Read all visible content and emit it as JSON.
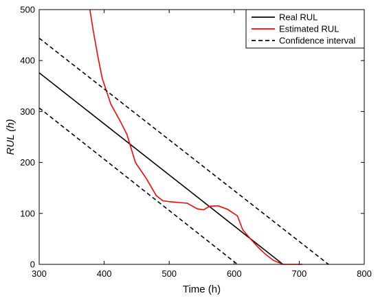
{
  "chart_data": {
    "type": "line",
    "xlabel": "Time (h)",
    "ylabel": "RUL (h)",
    "xlim": [
      300,
      800
    ],
    "ylim": [
      0,
      500
    ],
    "xticks": [
      300,
      400,
      500,
      600,
      700,
      800
    ],
    "yticks": [
      0,
      100,
      200,
      300,
      400,
      500
    ],
    "grid": false,
    "legend_position": "top-right",
    "series": [
      {
        "name": "Real RUL",
        "color": "#000000",
        "style": "solid",
        "x": [
          300,
          675
        ],
        "y": [
          376,
          0
        ]
      },
      {
        "name": "Estimated RUL",
        "color": "#ff0000",
        "style": "solid",
        "x": [
          378,
          383,
          390,
          397,
          410,
          425,
          435,
          448,
          465,
          480,
          490,
          500,
          510,
          528,
          543,
          553,
          562,
          575,
          590,
          605,
          613,
          625,
          638,
          648,
          660,
          675,
          690,
          705
        ],
        "y": [
          500,
          460,
          410,
          365,
          315,
          280,
          255,
          200,
          168,
          135,
          125,
          123,
          122,
          120,
          109,
          107,
          114,
          115,
          108,
          95,
          68,
          50,
          32,
          20,
          8,
          0,
          0,
          0
        ]
      },
      {
        "name": "Confidence interval",
        "color": "#000000",
        "style": "dashed",
        "x": [
          300,
          745
        ],
        "y": [
          444,
          0
        ]
      },
      {
        "name": "Confidence interval",
        "color": "#000000",
        "style": "dashed",
        "x": [
          300,
          605
        ],
        "y": [
          307,
          0
        ]
      }
    ],
    "legend": [
      {
        "label": "Real RUL",
        "color": "#000000",
        "style": "solid"
      },
      {
        "label": "Estimated RUL",
        "color": "#ff0000",
        "style": "solid"
      },
      {
        "label": "Confidence interval",
        "color": "#000000",
        "style": "dashed"
      }
    ]
  }
}
